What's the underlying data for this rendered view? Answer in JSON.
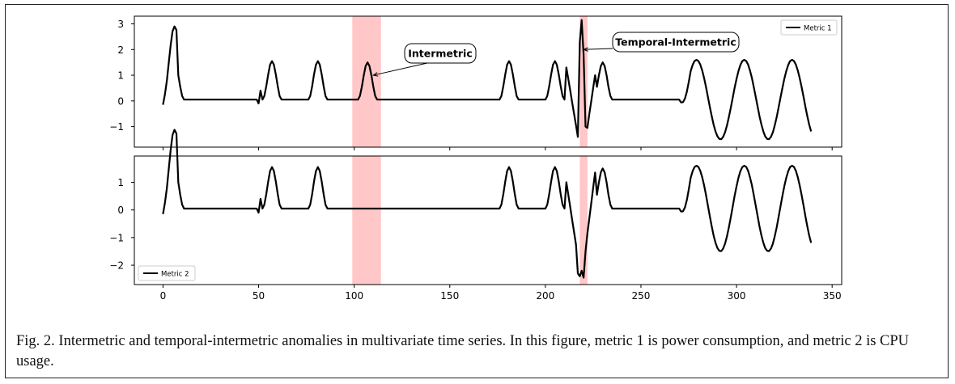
{
  "chart_data": [
    {
      "type": "line",
      "ylim": [
        -1.8,
        3.3
      ],
      "xlim": [
        -15,
        355
      ],
      "yticks": [
        3,
        2,
        1,
        0,
        -1
      ],
      "ytick_labels": [
        "3",
        "2",
        "1",
        "0",
        "−1"
      ],
      "legend": {
        "placement": "top-right",
        "label": "Metric 1"
      },
      "anomaly_spans": [
        [
          99,
          114
        ],
        [
          218,
          222
        ]
      ],
      "annotations": [
        {
          "label": "Intermetric",
          "target_x": 110,
          "target_y": 1.0
        },
        {
          "label": "Temporal-Intermetric",
          "target_x": 220,
          "target_y": 2.0
        }
      ],
      "series": [
        {
          "name": "Metric 1",
          "x_start": 0,
          "x_step": 1,
          "values": []
        }
      ]
    },
    {
      "type": "line",
      "ylim": [
        -2.7,
        1.95
      ],
      "xlim": [
        -15,
        355
      ],
      "yticks": [
        1,
        0,
        -1,
        -2
      ],
      "ytick_labels": [
        "1",
        "0",
        "−1",
        "−2"
      ],
      "xticks": [
        0,
        50,
        100,
        150,
        200,
        250,
        300,
        350
      ],
      "xtick_labels": [
        "0",
        "50",
        "100",
        "150",
        "200",
        "250",
        "300",
        "350"
      ],
      "legend": {
        "placement": "bottom-left",
        "label": "Metric 2"
      },
      "anomaly_spans": [
        [
          99,
          114
        ],
        [
          218,
          222
        ]
      ],
      "series": [
        {
          "name": "Metric 2",
          "x_start": 0,
          "x_step": 1,
          "values": []
        }
      ]
    }
  ],
  "caption": "Fig. 2.  Intermetric and temporal-intermetric anomalies in multivariate time series. In this figure, metric 1 is power consumption, and metric 2 is CPU usage."
}
